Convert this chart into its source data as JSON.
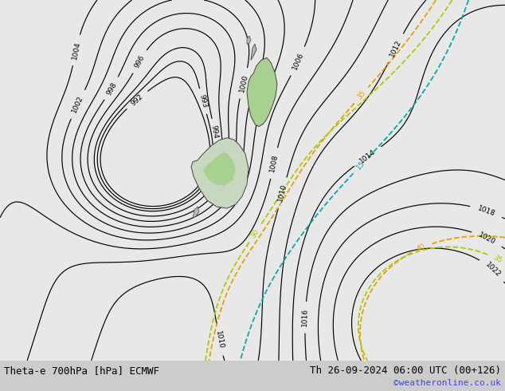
{
  "title_left": "Theta-e 700hPa [hPa] ECMWF",
  "title_right": "Th 26-09-2024 06:00 UTC (00+126)",
  "credit": "©weatheronline.co.uk",
  "background_color": "#e8e8e8",
  "fig_width": 6.34,
  "fig_height": 4.9,
  "dpi": 100,
  "title_fontsize": 9.0,
  "credit_color": "#4444ee",
  "credit_fontsize": 8,
  "land_color_light": "#c8d8c0",
  "land_color_green": "#a8d090",
  "land_color_gray": "#b8b8b8"
}
